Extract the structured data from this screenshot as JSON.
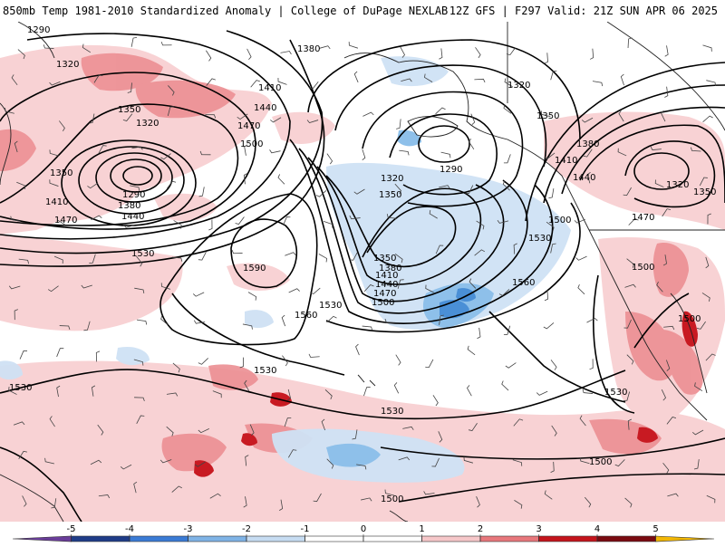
{
  "header": {
    "title": "850mb Temp 1981-2010 Standardized Anomaly | College of DuPage NEXLAB",
    "valid": "12Z GFS | F297 Valid: 21Z SUN APR 06 2025"
  },
  "colorbar": {
    "ticks": [
      "-5",
      "-4",
      "-3",
      "-2",
      "-1",
      "0",
      "1",
      "2",
      "3",
      "4",
      "5"
    ],
    "colors": [
      "#6a3d9a",
      "#1f3c88",
      "#3a7bd5",
      "#7fb3e6",
      "#c6dcf2",
      "#ffffff",
      "#ffffff",
      "#f6c7c9",
      "#e8777c",
      "#c4141c",
      "#7a0a10",
      "#f2b705"
    ]
  },
  "contour_labels": {
    "h1290_nw": "1290",
    "h1320_nw": "1320",
    "h1350_a": "1350",
    "h1320_b": "1320",
    "h1350_w": "1350",
    "h1290_low": "1290",
    "h1410_w": "1410",
    "h1380_w": "1380",
    "h1440_w": "1440",
    "h1470_w": "1470",
    "h1530_w": "1530",
    "h1380_n": "1380",
    "h1410_n": "1410",
    "h1440_n": "1440",
    "h1470_n": "1470",
    "h1500_n": "1500",
    "h1590": "1590",
    "h1560_c": "1560",
    "h1530_c": "1530",
    "h1500_c": "1500",
    "h1470_c": "1470",
    "h1440_c": "1440",
    "h1410_c": "1410",
    "h1380_c": "1380",
    "h1350_c": "1350",
    "h1320_ak": "1320",
    "h1350_ak": "1350",
    "h1290_ak": "1290",
    "h1320_ne": "1320",
    "h1350_ne": "1350",
    "h1380_ne": "1380",
    "h1410_ne": "1410",
    "h1440_ne": "1440",
    "h1320_e": "1320",
    "h1350_e": "1350",
    "h1470_e": "1470",
    "h1500_e": "1500",
    "h1530_e": "1530",
    "h1560_e": "1560",
    "h1500_sw": "1500",
    "h1500_se": "1500",
    "h1530_sw": "1530",
    "h1530_s1": "1530",
    "h1530_s2": "1530",
    "h1530_w2": "1530",
    "h1500_s": "1500",
    "h1500_bot": "1500"
  }
}
